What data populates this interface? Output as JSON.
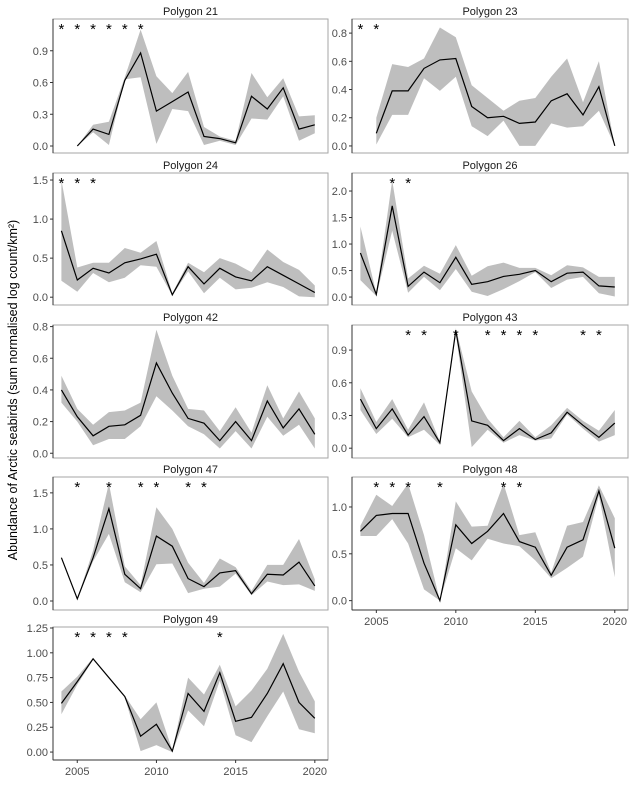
{
  "chart_data": {
    "type": "line",
    "ylabel": "Abundance of Arctic seabirds (sum normalised log count/km²)",
    "xlabel": "",
    "xlim": [
      2003.5,
      2020.8
    ],
    "x_ticks": [
      2005,
      2010,
      2015,
      2020
    ],
    "grid": false,
    "band_color": "#bebebe",
    "line_color": "#000000",
    "panels": [
      {
        "title": "Polygon 21",
        "ylim": [
          -0.066,
          1.2
        ],
        "y_ticks": [
          "0.0",
          "0.3",
          "0.6",
          "0.9"
        ],
        "y_tick_values": [
          0,
          0.3,
          0.6,
          0.9
        ],
        "x": [
          2005,
          2006,
          2007,
          2008,
          2009,
          2010,
          2011,
          2012,
          2013,
          2014,
          2015,
          2016,
          2017,
          2018,
          2019,
          2020
        ],
        "y": [
          0.0,
          0.16,
          0.11,
          0.62,
          0.88,
          0.33,
          0.42,
          0.51,
          0.09,
          0.07,
          0.03,
          0.47,
          0.35,
          0.55,
          0.16,
          0.2
        ],
        "lower": [
          0.0,
          0.13,
          0.01,
          0.63,
          0.65,
          0.02,
          0.35,
          0.33,
          0.01,
          0.05,
          0.01,
          0.26,
          0.25,
          0.47,
          0.05,
          0.12
        ],
        "upper": [
          0.0,
          0.2,
          0.23,
          0.65,
          1.1,
          0.66,
          0.5,
          0.7,
          0.18,
          0.09,
          0.05,
          0.69,
          0.46,
          0.64,
          0.28,
          0.29
        ],
        "significant_years": [
          2004,
          2005,
          2006,
          2007,
          2008,
          2009
        ],
        "show_x_ticks": false
      },
      {
        "title": "Polygon 23",
        "ylim": [
          -0.05,
          0.9
        ],
        "y_ticks": [
          "0.0",
          "0.2",
          "0.4",
          "0.6",
          "0.8"
        ],
        "y_tick_values": [
          0,
          0.2,
          0.4,
          0.6,
          0.8
        ],
        "x": [
          2005,
          2006,
          2007,
          2008,
          2009,
          2010,
          2011,
          2012,
          2013,
          2014,
          2015,
          2016,
          2017,
          2018,
          2019,
          2020
        ],
        "y": [
          0.09,
          0.39,
          0.39,
          0.55,
          0.61,
          0.62,
          0.28,
          0.2,
          0.21,
          0.16,
          0.17,
          0.32,
          0.37,
          0.22,
          0.42,
          0.0
        ],
        "lower": [
          0.01,
          0.22,
          0.22,
          0.48,
          0.39,
          0.49,
          0.14,
          0.07,
          0.18,
          0.0,
          0.0,
          0.16,
          0.13,
          0.14,
          0.25,
          0.0
        ],
        "upper": [
          0.2,
          0.58,
          0.56,
          0.62,
          0.84,
          0.77,
          0.43,
          0.34,
          0.25,
          0.32,
          0.34,
          0.49,
          0.62,
          0.31,
          0.6,
          0.0
        ],
        "significant_years": [
          2004,
          2005
        ],
        "show_x_ticks": false
      },
      {
        "title": "Polygon 24",
        "ylim": [
          -0.1,
          1.59
        ],
        "y_ticks": [
          "0.0",
          "0.5",
          "1.0",
          "1.5"
        ],
        "y_tick_values": [
          0,
          0.5,
          1.0,
          1.5
        ],
        "x": [
          2004,
          2005,
          2006,
          2007,
          2008,
          2009,
          2010,
          2011,
          2012,
          2013,
          2014,
          2015,
          2016,
          2017,
          2018,
          2019,
          2020
        ],
        "y": [
          0.85,
          0.22,
          0.37,
          0.31,
          0.44,
          0.49,
          0.55,
          0.03,
          0.39,
          0.17,
          0.37,
          0.26,
          0.21,
          0.39,
          0.28,
          0.17,
          0.06
        ],
        "lower": [
          0.21,
          0.07,
          0.31,
          0.19,
          0.25,
          0.41,
          0.39,
          0.02,
          0.33,
          0.05,
          0.25,
          0.1,
          0.12,
          0.19,
          0.13,
          0.01,
          0.0
        ],
        "upper": [
          1.5,
          0.38,
          0.44,
          0.44,
          0.63,
          0.57,
          0.72,
          0.05,
          0.44,
          0.32,
          0.5,
          0.43,
          0.32,
          0.61,
          0.45,
          0.35,
          0.15
        ],
        "significant_years": [
          2004,
          2005,
          2006
        ],
        "show_x_ticks": false
      },
      {
        "title": "Polygon 26",
        "ylim": [
          -0.15,
          2.34
        ],
        "y_ticks": [
          "0.0",
          "0.5",
          "1.0",
          "1.5",
          "2.0"
        ],
        "y_tick_values": [
          0,
          0.5,
          1.0,
          1.5,
          2.0
        ],
        "x": [
          2004,
          2005,
          2006,
          2007,
          2008,
          2009,
          2010,
          2011,
          2012,
          2013,
          2014,
          2015,
          2016,
          2017,
          2018,
          2019,
          2020
        ],
        "y": [
          0.83,
          0.05,
          1.72,
          0.2,
          0.47,
          0.27,
          0.75,
          0.24,
          0.29,
          0.39,
          0.43,
          0.5,
          0.29,
          0.45,
          0.47,
          0.21,
          0.19
        ],
        "lower": [
          0.32,
          0.02,
          1.25,
          0.08,
          0.38,
          0.13,
          0.53,
          0.1,
          0.02,
          0.15,
          0.3,
          0.47,
          0.17,
          0.33,
          0.38,
          0.07,
          0.01
        ],
        "upper": [
          1.33,
          0.07,
          2.2,
          0.35,
          0.59,
          0.44,
          0.98,
          0.4,
          0.58,
          0.65,
          0.55,
          0.55,
          0.41,
          0.6,
          0.56,
          0.38,
          0.38
        ],
        "significant_years": [
          2006,
          2007
        ],
        "show_x_ticks": false
      },
      {
        "title": "Polygon 42",
        "ylim": [
          -0.03,
          0.81
        ],
        "y_ticks": [
          "0.0",
          "0.2",
          "0.4",
          "0.6",
          "0.8"
        ],
        "y_tick_values": [
          0,
          0.2,
          0.4,
          0.6,
          0.8
        ],
        "x": [
          2004,
          2005,
          2006,
          2007,
          2008,
          2009,
          2010,
          2011,
          2012,
          2013,
          2014,
          2015,
          2016,
          2017,
          2018,
          2019,
          2020
        ],
        "y": [
          0.4,
          0.23,
          0.11,
          0.17,
          0.18,
          0.24,
          0.57,
          0.38,
          0.22,
          0.19,
          0.08,
          0.2,
          0.08,
          0.33,
          0.16,
          0.28,
          0.12
        ],
        "lower": [
          0.32,
          0.2,
          0.05,
          0.09,
          0.09,
          0.17,
          0.36,
          0.27,
          0.17,
          0.12,
          0.03,
          0.14,
          0.03,
          0.23,
          0.11,
          0.18,
          0.03
        ],
        "upper": [
          0.49,
          0.28,
          0.18,
          0.26,
          0.27,
          0.32,
          0.78,
          0.49,
          0.28,
          0.27,
          0.14,
          0.29,
          0.13,
          0.43,
          0.22,
          0.39,
          0.22
        ],
        "significant_years": [],
        "show_x_ticks": false
      },
      {
        "title": "Polygon 43",
        "ylim": [
          -0.09,
          1.13
        ],
        "y_ticks": [
          "0.0",
          "0.3",
          "0.6",
          "0.9"
        ],
        "y_tick_values": [
          0,
          0.3,
          0.6,
          0.9
        ],
        "x": [
          2004,
          2005,
          2006,
          2007,
          2008,
          2009,
          2010,
          2011,
          2012,
          2013,
          2014,
          2015,
          2016,
          2017,
          2018,
          2019,
          2020
        ],
        "y": [
          0.45,
          0.18,
          0.36,
          0.12,
          0.29,
          0.05,
          1.08,
          0.25,
          0.21,
          0.07,
          0.18,
          0.08,
          0.14,
          0.33,
          0.21,
          0.1,
          0.23
        ],
        "lower": [
          0.35,
          0.13,
          0.27,
          0.1,
          0.17,
          0.03,
          1.05,
          0.01,
          0.17,
          0.05,
          0.12,
          0.07,
          0.09,
          0.31,
          0.18,
          0.06,
          0.12
        ],
        "upper": [
          0.55,
          0.24,
          0.45,
          0.17,
          0.42,
          0.06,
          1.1,
          0.52,
          0.27,
          0.1,
          0.25,
          0.1,
          0.21,
          0.37,
          0.25,
          0.16,
          0.35
        ],
        "significant_years": [
          2007,
          2008,
          2010,
          2012,
          2013,
          2014,
          2015,
          2018,
          2019
        ],
        "show_x_ticks": false
      },
      {
        "title": "Polygon 47",
        "ylim": [
          -0.125,
          1.72
        ],
        "y_ticks": [
          "0.0",
          "0.5",
          "1.0",
          "1.5"
        ],
        "y_tick_values": [
          0,
          0.5,
          1.0,
          1.5
        ],
        "x": [
          2004,
          2005,
          2006,
          2007,
          2008,
          2009,
          2010,
          2011,
          2012,
          2013,
          2014,
          2015,
          2016,
          2017,
          2018,
          2019,
          2020
        ],
        "y": [
          0.6,
          0.03,
          0.6,
          1.28,
          0.37,
          0.17,
          0.9,
          0.76,
          0.31,
          0.2,
          0.39,
          0.42,
          0.1,
          0.37,
          0.36,
          0.54,
          0.21
        ],
        "lower": [
          0.6,
          0.03,
          0.55,
          0.93,
          0.26,
          0.12,
          0.51,
          0.52,
          0.11,
          0.17,
          0.2,
          0.38,
          0.08,
          0.27,
          0.22,
          0.23,
          0.14
        ],
        "upper": [
          0.6,
          0.03,
          0.7,
          1.63,
          0.48,
          0.22,
          1.3,
          1.0,
          0.53,
          0.25,
          0.59,
          0.47,
          0.14,
          0.5,
          0.5,
          0.86,
          0.3
        ],
        "significant_years": [
          2005,
          2007,
          2009,
          2010,
          2012,
          2013
        ],
        "show_x_ticks": false
      },
      {
        "title": "Polygon 48",
        "ylim": [
          -0.1,
          1.32
        ],
        "y_ticks": [
          "0.0",
          "0.5",
          "1.0"
        ],
        "y_tick_values": [
          0,
          0.5,
          1.0
        ],
        "x": [
          2004,
          2005,
          2006,
          2007,
          2008,
          2009,
          2010,
          2011,
          2012,
          2013,
          2014,
          2015,
          2016,
          2017,
          2018,
          2019,
          2020
        ],
        "y": [
          0.74,
          0.91,
          0.93,
          0.93,
          0.4,
          0.0,
          0.81,
          0.61,
          0.74,
          0.93,
          0.63,
          0.57,
          0.27,
          0.57,
          0.65,
          1.17,
          0.56
        ],
        "lower": [
          0.69,
          0.69,
          0.87,
          0.61,
          0.12,
          0.0,
          0.56,
          0.43,
          0.66,
          0.61,
          0.58,
          0.43,
          0.24,
          0.35,
          0.47,
          1.12,
          0.25
        ],
        "upper": [
          0.8,
          1.13,
          1.01,
          1.25,
          0.7,
          0.0,
          1.06,
          0.79,
          0.8,
          1.25,
          0.7,
          0.73,
          0.3,
          0.8,
          0.84,
          1.23,
          0.88
        ],
        "significant_years": [
          2005,
          2006,
          2007,
          2009,
          2013,
          2014
        ],
        "show_x_ticks": true
      },
      {
        "title": "Polygon 49",
        "ylim": [
          -0.08,
          1.26
        ],
        "y_ticks": [
          "0.00",
          "0.25",
          "0.50",
          "0.75",
          "1.00",
          "1.25"
        ],
        "y_tick_values": [
          0,
          0.25,
          0.5,
          0.75,
          1.0,
          1.25
        ],
        "x": [
          2004,
          2005,
          2006,
          2007,
          2008,
          2009,
          2010,
          2011,
          2012,
          2013,
          2014,
          2015,
          2016,
          2017,
          2018,
          2019,
          2020
        ],
        "y": [
          0.49,
          0.71,
          0.94,
          0.75,
          0.56,
          0.16,
          0.28,
          0.01,
          0.59,
          0.41,
          0.8,
          0.31,
          0.35,
          0.59,
          0.89,
          0.5,
          0.34
        ],
        "lower": [
          0.38,
          0.68,
          0.93,
          0.74,
          0.55,
          0.01,
          0.07,
          0.0,
          0.42,
          0.26,
          0.72,
          0.17,
          0.1,
          0.36,
          0.61,
          0.23,
          0.19
        ],
        "upper": [
          0.61,
          0.76,
          0.95,
          0.76,
          0.57,
          0.33,
          0.5,
          0.02,
          0.75,
          0.58,
          0.88,
          0.46,
          0.62,
          0.84,
          1.19,
          0.81,
          0.51
        ],
        "significant_years": [
          2005,
          2006,
          2007,
          2008,
          2014
        ],
        "show_x_ticks": true
      }
    ]
  }
}
